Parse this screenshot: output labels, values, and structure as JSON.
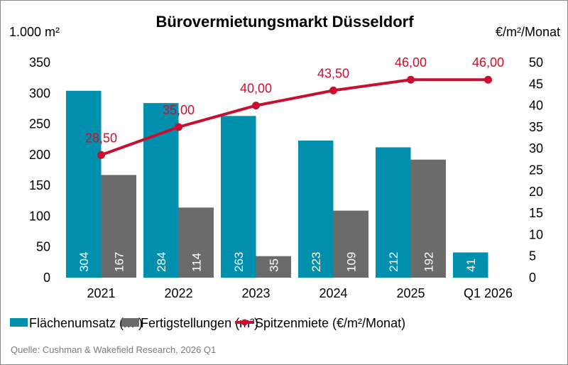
{
  "chart_data": {
    "type": "bar",
    "title": "Bürovermietungsmarkt Düsseldorf",
    "categories": [
      "2021",
      "2022",
      "2023",
      "2024",
      "2025",
      "Q1 2026"
    ],
    "left_axis": {
      "unit_label": "1.000 m²",
      "range": [
        0,
        350
      ],
      "ticks": [
        "0",
        "50",
        "100",
        "150",
        "200",
        "250",
        "300",
        "350"
      ]
    },
    "right_axis": {
      "unit_label": "€/m²/Monat",
      "range": [
        0,
        50
      ],
      "ticks": [
        "0",
        "5",
        "10",
        "15",
        "20",
        "25",
        "30",
        "35",
        "40",
        "45",
        "50"
      ]
    },
    "series": [
      {
        "name": "Flächenumsatz (m²)",
        "kind": "bar",
        "axis": "left",
        "color": "#0090ad",
        "values": [
          304,
          284,
          263,
          223,
          212,
          41
        ],
        "labels": [
          "304",
          "284",
          "263",
          "223",
          "212",
          "41"
        ]
      },
      {
        "name": "Fertigstellungen (m²)",
        "kind": "bar",
        "axis": "left",
        "color": "#6b6b6b",
        "values": [
          167,
          114,
          35,
          109,
          192,
          null
        ],
        "labels": [
          "167",
          "114",
          "35",
          "109",
          "192",
          ""
        ]
      },
      {
        "name": "Spitzenmiete (€/m²/Monat)",
        "kind": "line",
        "axis": "right",
        "color": "#c8102e",
        "values": [
          28.5,
          35.0,
          40.0,
          43.5,
          46.0,
          46.0
        ],
        "labels": [
          "28,50",
          "35,00",
          "40,00",
          "43,50",
          "46,00",
          "46,00"
        ]
      }
    ],
    "legend": {
      "placement": "bottom",
      "entries": [
        "Flächenumsatz (m²)",
        "Fertigstellungen (m²)",
        "Spitzenmiete (€/m²/Monat)"
      ]
    },
    "grid": false,
    "source": "Quelle: Cushman & Wakefield Research, 2026 Q1"
  }
}
